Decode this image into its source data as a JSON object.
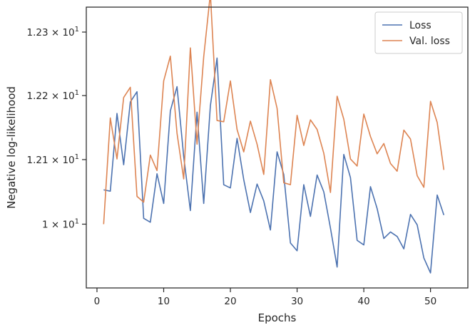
{
  "chart_data": {
    "type": "line",
    "title": "",
    "xlabel": "Epochs",
    "ylabel": "Negative log-likelihood",
    "xlim": [
      -1.6,
      55.6
    ],
    "ylim": [
      11.902,
      12.3395
    ],
    "xticks": [
      0,
      10,
      20,
      30,
      40,
      50
    ],
    "xtick_labels": [
      "0",
      "10",
      "20",
      "30",
      "40",
      "50"
    ],
    "yticks": [
      12.0,
      12.1,
      12.2,
      12.3
    ],
    "ytick_labels": [
      {
        "mantissa": "1",
        "base": "10",
        "exp": "1"
      },
      {
        "mantissa": "1.21",
        "base": "10",
        "exp": "1"
      },
      {
        "mantissa": "1.22",
        "base": "10",
        "exp": "1"
      },
      {
        "mantissa": "1.23",
        "base": "10",
        "exp": "1"
      }
    ],
    "y_scale": "log",
    "grid": false,
    "legend_position": "upper right",
    "x": [
      1,
      2,
      3,
      4,
      5,
      6,
      7,
      8,
      9,
      10,
      11,
      12,
      13,
      14,
      15,
      16,
      17,
      18,
      19,
      20,
      21,
      22,
      23,
      24,
      25,
      26,
      27,
      28,
      29,
      30,
      31,
      32,
      33,
      34,
      35,
      36,
      37,
      38,
      39,
      40,
      41,
      42,
      43,
      44,
      45,
      46,
      47,
      48,
      49,
      50,
      51,
      52
    ],
    "series": [
      {
        "name": "Loss",
        "color": "#4c72b0",
        "values": [
          12.053,
          12.051,
          12.172,
          12.092,
          12.19,
          12.206,
          12.009,
          12.003,
          12.078,
          12.032,
          12.176,
          12.214,
          12.105,
          12.021,
          12.174,
          12.032,
          12.184,
          12.259,
          12.061,
          12.056,
          12.133,
          12.069,
          12.018,
          12.062,
          12.036,
          11.991,
          12.112,
          12.077,
          11.971,
          11.959,
          12.061,
          12.012,
          12.076,
          12.05,
          11.994,
          11.934,
          12.108,
          12.072,
          11.975,
          11.968,
          12.058,
          12.024,
          11.978,
          11.988,
          11.981,
          11.962,
          12.015,
          11.999,
          11.948,
          11.925,
          12.045,
          12.014
        ]
      },
      {
        "name": "Val. loss",
        "color": "#dd8452",
        "values": [
          12.0,
          12.165,
          12.101,
          12.197,
          12.213,
          12.043,
          12.034,
          12.107,
          12.083,
          12.223,
          12.262,
          12.141,
          12.07,
          12.275,
          12.124,
          12.261,
          12.361,
          12.161,
          12.159,
          12.223,
          12.147,
          12.112,
          12.16,
          12.124,
          12.077,
          12.225,
          12.18,
          12.064,
          12.061,
          12.169,
          12.122,
          12.162,
          12.147,
          12.11,
          12.049,
          12.199,
          12.163,
          12.101,
          12.09,
          12.171,
          12.136,
          12.109,
          12.125,
          12.094,
          12.082,
          12.146,
          12.132,
          12.075,
          12.057,
          12.191,
          12.158,
          12.084
        ]
      }
    ]
  }
}
